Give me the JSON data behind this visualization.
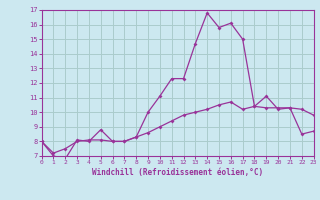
{
  "xlabel": "Windchill (Refroidissement éolien,°C)",
  "x": [
    0,
    1,
    2,
    3,
    4,
    5,
    6,
    7,
    8,
    9,
    10,
    11,
    12,
    13,
    14,
    15,
    16,
    17,
    18,
    19,
    20,
    21,
    22,
    23
  ],
  "line1": [
    8.0,
    7.0,
    6.8,
    8.1,
    8.0,
    8.8,
    8.0,
    8.0,
    8.3,
    10.0,
    11.1,
    12.3,
    12.3,
    14.7,
    16.8,
    15.8,
    16.1,
    15.0,
    10.4,
    11.1,
    10.2,
    10.3,
    10.2,
    9.8
  ],
  "line2": [
    8.0,
    7.2,
    7.5,
    8.0,
    8.1,
    8.1,
    8.0,
    8.0,
    8.3,
    8.6,
    9.0,
    9.4,
    9.8,
    10.0,
    10.2,
    10.5,
    10.7,
    10.2,
    10.4,
    10.3,
    10.3,
    10.3,
    8.5,
    8.7
  ],
  "line_color": "#993399",
  "bg_color": "#cce8f0",
  "grid_color": "#aacccc",
  "ylim": [
    7,
    17
  ],
  "xlim": [
    0,
    23
  ],
  "yticks": [
    7,
    8,
    9,
    10,
    11,
    12,
    13,
    14,
    15,
    16,
    17
  ],
  "xticks": [
    0,
    1,
    2,
    3,
    4,
    5,
    6,
    7,
    8,
    9,
    10,
    11,
    12,
    13,
    14,
    15,
    16,
    17,
    18,
    19,
    20,
    21,
    22,
    23
  ]
}
